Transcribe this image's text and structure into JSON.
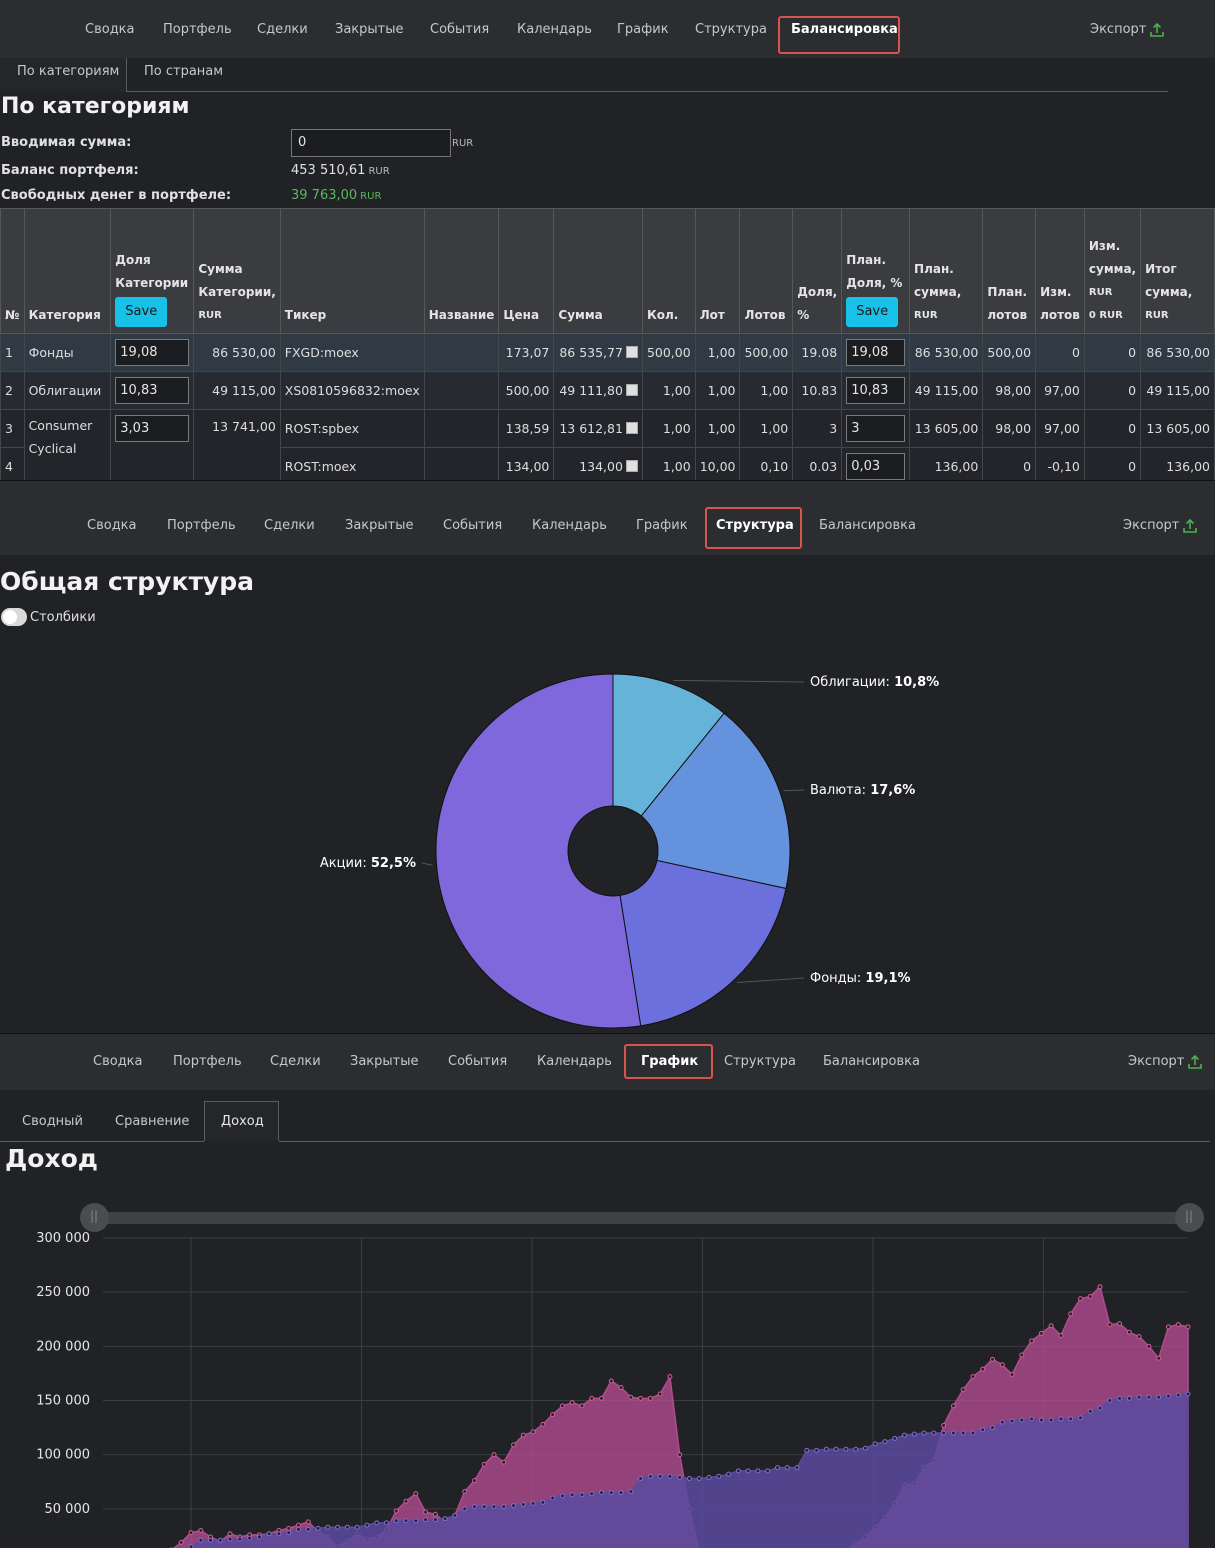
{
  "nav": {
    "items": [
      "Сводка",
      "Портфель",
      "Сделки",
      "Закрытые",
      "События",
      "Календарь",
      "График",
      "Структура",
      "Балансировка"
    ],
    "export_label": "Экспорт"
  },
  "balance": {
    "active_tab": "Балансировка",
    "subtabs": [
      "По категориям",
      "По странам"
    ],
    "title": "По категориям",
    "input_label": "Вводимая сумма:",
    "input_value": "0",
    "currency": "RUR",
    "portfolio_balance_label": "Баланс портфеля:",
    "portfolio_balance": "453 510,61",
    "free_money_label": "Свободных денег в портфеле:",
    "free_money": "39 763,00",
    "table": {
      "headers": {
        "n": "№",
        "category": "Категория",
        "share": "Доля Категории",
        "save": "Save",
        "cat_sum": "Сумма Категории,",
        "ticker": "Тикер",
        "name": "Название",
        "price": "Цена",
        "sum": "Сумма",
        "qty": "Кол.",
        "lot": "Лот",
        "lots": "Лотов",
        "pct": "Доля, %",
        "plan_share": "План. Доля, %",
        "plan_sum": "План. сумма,",
        "plan_lots": "План. лотов",
        "chg_lots": "Изм. лотов",
        "chg_sum": "Изм. сумма,",
        "chg_sum_rur": "RUR",
        "chg_sum_zero": "0 RUR",
        "total": "Итог сумма,",
        "rur": "RUR"
      },
      "rows": [
        {
          "n": "1",
          "category": "Фонды",
          "share": "19,08",
          "cat_sum": "86 530,00",
          "ticker": "FXGD:moex",
          "name": "",
          "price": "173,07",
          "sum": "86 535,77",
          "qty": "500,00",
          "lot": "1,00",
          "lots": "500,00",
          "pct": "19.08",
          "plan_share": "19,08",
          "plan_sum": "86 530,00",
          "plan_lots": "500,00",
          "chg_lots": "0",
          "chg_sum": "0",
          "total": "86 530,00"
        },
        {
          "n": "2",
          "category": "Облигации",
          "share": "10,83",
          "cat_sum": "49 115,00",
          "ticker": "XS0810596832:moex",
          "name": "",
          "price": "500,00",
          "sum": "49 111,80",
          "qty": "1,00",
          "lot": "1,00",
          "lots": "1,00",
          "pct": "10.83",
          "plan_share": "10,83",
          "plan_sum": "49 115,00",
          "plan_lots": "98,00",
          "chg_lots": "97,00",
          "chg_sum": "0",
          "total": "49 115,00"
        },
        {
          "n": "3",
          "category": "Consumer Cyclical",
          "share": "3,03",
          "cat_sum": "13 741,00",
          "ticker": "ROST:spbex",
          "name": "",
          "price": "138,59",
          "sum": "13 612,81",
          "qty": "1,00",
          "lot": "1,00",
          "lots": "1,00",
          "pct": "3",
          "plan_share": "3",
          "plan_sum": "13 605,00",
          "plan_lots": "98,00",
          "chg_lots": "97,00",
          "chg_sum": "0",
          "total": "13 605,00"
        },
        {
          "n": "4",
          "ticker": "ROST:moex",
          "name": "",
          "price": "134,00",
          "sum": "134,00",
          "qty": "1,00",
          "lot": "10,00",
          "lots": "0,10",
          "pct": "0.03",
          "plan_share": "0,03",
          "plan_sum": "136,00",
          "plan_lots": "0",
          "chg_lots": "-0,10",
          "chg_sum": "0",
          "total": "136,00"
        }
      ]
    }
  },
  "structure": {
    "active_tab": "Структура",
    "title": "Общая структура",
    "toggle_label": "Столбики",
    "colors": {
      "bonds": "#66b3da",
      "currency": "#6492dc",
      "funds": "#6b70dc",
      "stocks": "#7f68dc"
    }
  },
  "income": {
    "active_tab": "График",
    "subtabs": [
      "Сводный",
      "Сравнение",
      "Доход"
    ],
    "active_subtab": "Доход",
    "title": "Доход"
  },
  "chart_data": [
    {
      "type": "pie",
      "donut": true,
      "slices": [
        {
          "label": "Облигации",
          "value": 10.8,
          "value_label": "10,8%",
          "color": "#66b3da"
        },
        {
          "label": "Валюта",
          "value": 17.6,
          "value_label": "17,6%",
          "color": "#6492dc"
        },
        {
          "label": "Фонды",
          "value": 19.1,
          "value_label": "19,1%",
          "color": "#6b70dc"
        },
        {
          "label": "Акции",
          "value": 52.5,
          "value_label": "52,5%",
          "color": "#7f68dc"
        }
      ]
    },
    {
      "type": "area",
      "ylim": [
        0,
        300000
      ],
      "yticks": [
        50000,
        100000,
        150000,
        200000,
        250000,
        300000
      ],
      "ytick_labels": [
        "50 000",
        "100 000",
        "150 000",
        "200 000",
        "250 000",
        "300 000"
      ],
      "x_grid_lines": 6,
      "grid": true,
      "series": [
        {
          "color": "#b04c8e",
          "values": [
            0,
            0,
            0,
            0,
            0,
            0,
            5000,
            12000,
            19000,
            28000,
            30000,
            24000,
            20000,
            27000,
            24000,
            26000,
            26000,
            27000,
            30000,
            32000,
            35000,
            38000,
            29000,
            24000,
            15000,
            20000,
            27000,
            22000,
            24000,
            31000,
            48000,
            57000,
            64000,
            47000,
            45000,
            38000,
            44000,
            66000,
            76000,
            91000,
            100000,
            93000,
            109000,
            118000,
            121000,
            128000,
            137000,
            145000,
            148000,
            145000,
            152000,
            152000,
            168000,
            162000,
            153000,
            152000,
            152000,
            156000,
            172000,
            100000,
            50000,
            10000,
            5000,
            3000,
            2000,
            2000,
            1000,
            1000,
            1000,
            1000,
            1000,
            1000,
            0,
            0,
            5000,
            8000,
            11000,
            18000,
            24000,
            33000,
            42000,
            55000,
            72000,
            73000,
            88000,
            95000,
            127000,
            145000,
            160000,
            172000,
            179000,
            188000,
            183000,
            174000,
            192000,
            205000,
            212000,
            219000,
            210000,
            230000,
            244000,
            246000,
            255000,
            220000,
            221000,
            213000,
            209000,
            200000,
            189000,
            218000,
            220000,
            218000
          ]
        },
        {
          "color": "#5a4aa0",
          "values": [
            0,
            0,
            0,
            0,
            0,
            0,
            0,
            5000,
            10000,
            15000,
            21000,
            21000,
            21000,
            22000,
            22000,
            23000,
            24000,
            27000,
            27000,
            28000,
            31000,
            31000,
            32000,
            33000,
            33000,
            33000,
            33000,
            35000,
            37000,
            37000,
            39000,
            39000,
            39000,
            40000,
            40000,
            41000,
            44000,
            50000,
            52000,
            52000,
            52000,
            52000,
            53000,
            54000,
            55000,
            56000,
            60000,
            62000,
            63000,
            63000,
            64000,
            65000,
            65000,
            65000,
            66000,
            78000,
            80000,
            80000,
            80000,
            79000,
            78000,
            78000,
            79000,
            80000,
            82000,
            85000,
            85000,
            85000,
            85000,
            88000,
            88000,
            88000,
            104000,
            104000,
            105000,
            105000,
            105000,
            105000,
            106000,
            110000,
            112000,
            115000,
            118000,
            119000,
            120000,
            120000,
            120000,
            120000,
            120000,
            120000,
            123000,
            125000,
            130000,
            131000,
            132000,
            133000,
            132000,
            132000,
            133000,
            133000,
            134000,
            140000,
            143000,
            150000,
            152000,
            152000,
            153000,
            153000,
            153000,
            154000,
            155000,
            156000
          ]
        }
      ]
    }
  ]
}
